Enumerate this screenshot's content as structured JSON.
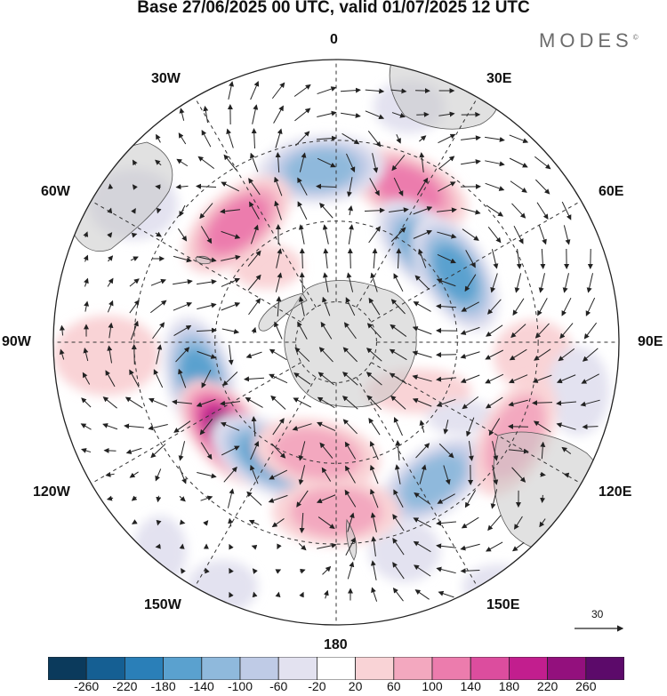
{
  "title": "Base 27/06/2025 00 UTC, valid 01/07/2025 12 UTC",
  "brand": "MODES",
  "brand_mark": "©",
  "longitude_labels": {
    "lon_0": "0",
    "lon_30e": "30E",
    "lon_60e": "60E",
    "lon_90e": "90E",
    "lon_120e": "120E",
    "lon_150e": "150E",
    "lon_180": "180",
    "lon_150w": "150W",
    "lon_120w": "120W",
    "lon_90w": "90W",
    "lon_60w": "60W",
    "lon_30w": "30W"
  },
  "reference_vector": {
    "value": "30"
  },
  "colorbar": {
    "tick_labels": [
      "-260",
      "-220",
      "-180",
      "-140",
      "-100",
      "-60",
      "-20",
      "20",
      "60",
      "100",
      "140",
      "180",
      "220",
      "260"
    ],
    "colors": [
      "#0b3a5c",
      "#155f93",
      "#2a7fb8",
      "#5aa1cf",
      "#8fb9dc",
      "#bfcbe6",
      "#e3e2f0",
      "#ffffff",
      "#f9d3d6",
      "#f3a8bf",
      "#ec7cad",
      "#dc4d9e",
      "#c21e8e",
      "#93107d",
      "#5c0a6a"
    ]
  },
  "anomaly_centers": [
    {
      "lon": 25,
      "lat": -48,
      "sign": "positive",
      "level": 2
    },
    {
      "lon": -5,
      "lat": -47,
      "sign": "negative",
      "level": 2
    },
    {
      "lon": -40,
      "lat": -52,
      "sign": "positive",
      "level": 2
    },
    {
      "lon": 45,
      "lat": -58,
      "sign": "negative",
      "level": 3
    },
    {
      "lon": 60,
      "lat": -56,
      "sign": "negative",
      "level": 3
    },
    {
      "lon": -105,
      "lat": -55,
      "sign": "negative",
      "level": 3
    },
    {
      "lon": -130,
      "lat": -55,
      "sign": "positive",
      "level": 5
    },
    {
      "lon": -150,
      "lat": -57,
      "sign": "negative",
      "level": 3
    },
    {
      "lon": 145,
      "lat": -48,
      "sign": "negative",
      "level": 2
    },
    {
      "lon": 118,
      "lat": -40,
      "sign": "positive",
      "level": 1
    },
    {
      "lon": 180,
      "lat": -48,
      "sign": "positive",
      "level": 1
    },
    {
      "lon": -170,
      "lat": -62,
      "sign": "positive",
      "level": 1
    }
  ]
}
